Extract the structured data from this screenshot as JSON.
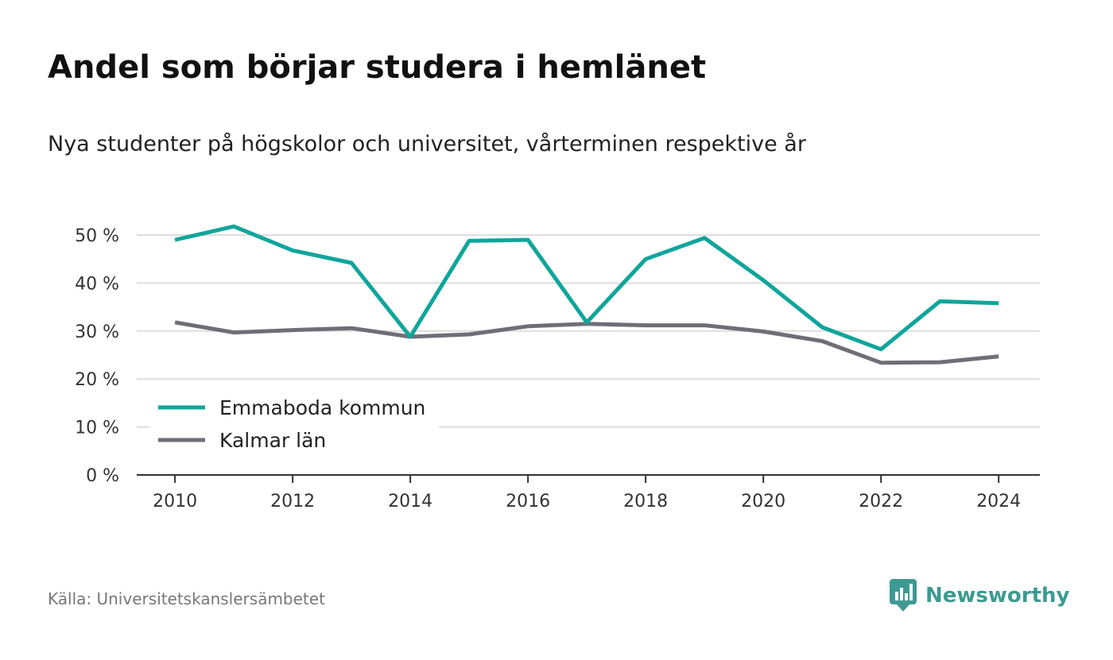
{
  "title": "Andel som börjar studera i hemlänet",
  "subtitle": "Nya studenter på högskolor och universitet, vårterminen respektive år",
  "source": "Källa: Universitetskanslersämbetet",
  "brand": {
    "name": "Newsworthy",
    "color": "#3d9a92",
    "icon": "newsworthy-logo-icon"
  },
  "chart_data": {
    "type": "line",
    "x": [
      2010,
      2011,
      2012,
      2013,
      2014,
      2015,
      2016,
      2017,
      2018,
      2019,
      2020,
      2021,
      2022,
      2023,
      2024
    ],
    "x_ticks": [
      2010,
      2012,
      2014,
      2016,
      2018,
      2020,
      2022,
      2024
    ],
    "ylim": [
      0,
      52
    ],
    "y_ticks": [
      0,
      10,
      20,
      30,
      40,
      50
    ],
    "y_tick_labels": [
      "0 %",
      "10 %",
      "20 %",
      "30 %",
      "40 %",
      "50 %"
    ],
    "grid": true,
    "legend_position": "bottom-left",
    "series": [
      {
        "name": "Emmaboda kommun",
        "color": "#0fa59b",
        "values": [
          49.0,
          51.8,
          46.8,
          44.2,
          28.8,
          48.8,
          49.0,
          31.8,
          45.0,
          49.4,
          40.6,
          30.8,
          26.2,
          36.2,
          35.8
        ]
      },
      {
        "name": "Kalmar län",
        "color": "#6f6e77",
        "values": [
          31.8,
          29.7,
          30.2,
          30.6,
          28.8,
          29.3,
          31.0,
          31.5,
          31.2,
          31.2,
          29.9,
          27.9,
          23.4,
          23.5,
          24.7
        ]
      }
    ],
    "colors": {
      "grid": "#dddddd",
      "axis": "#333333",
      "tick_text": "#333333"
    }
  }
}
